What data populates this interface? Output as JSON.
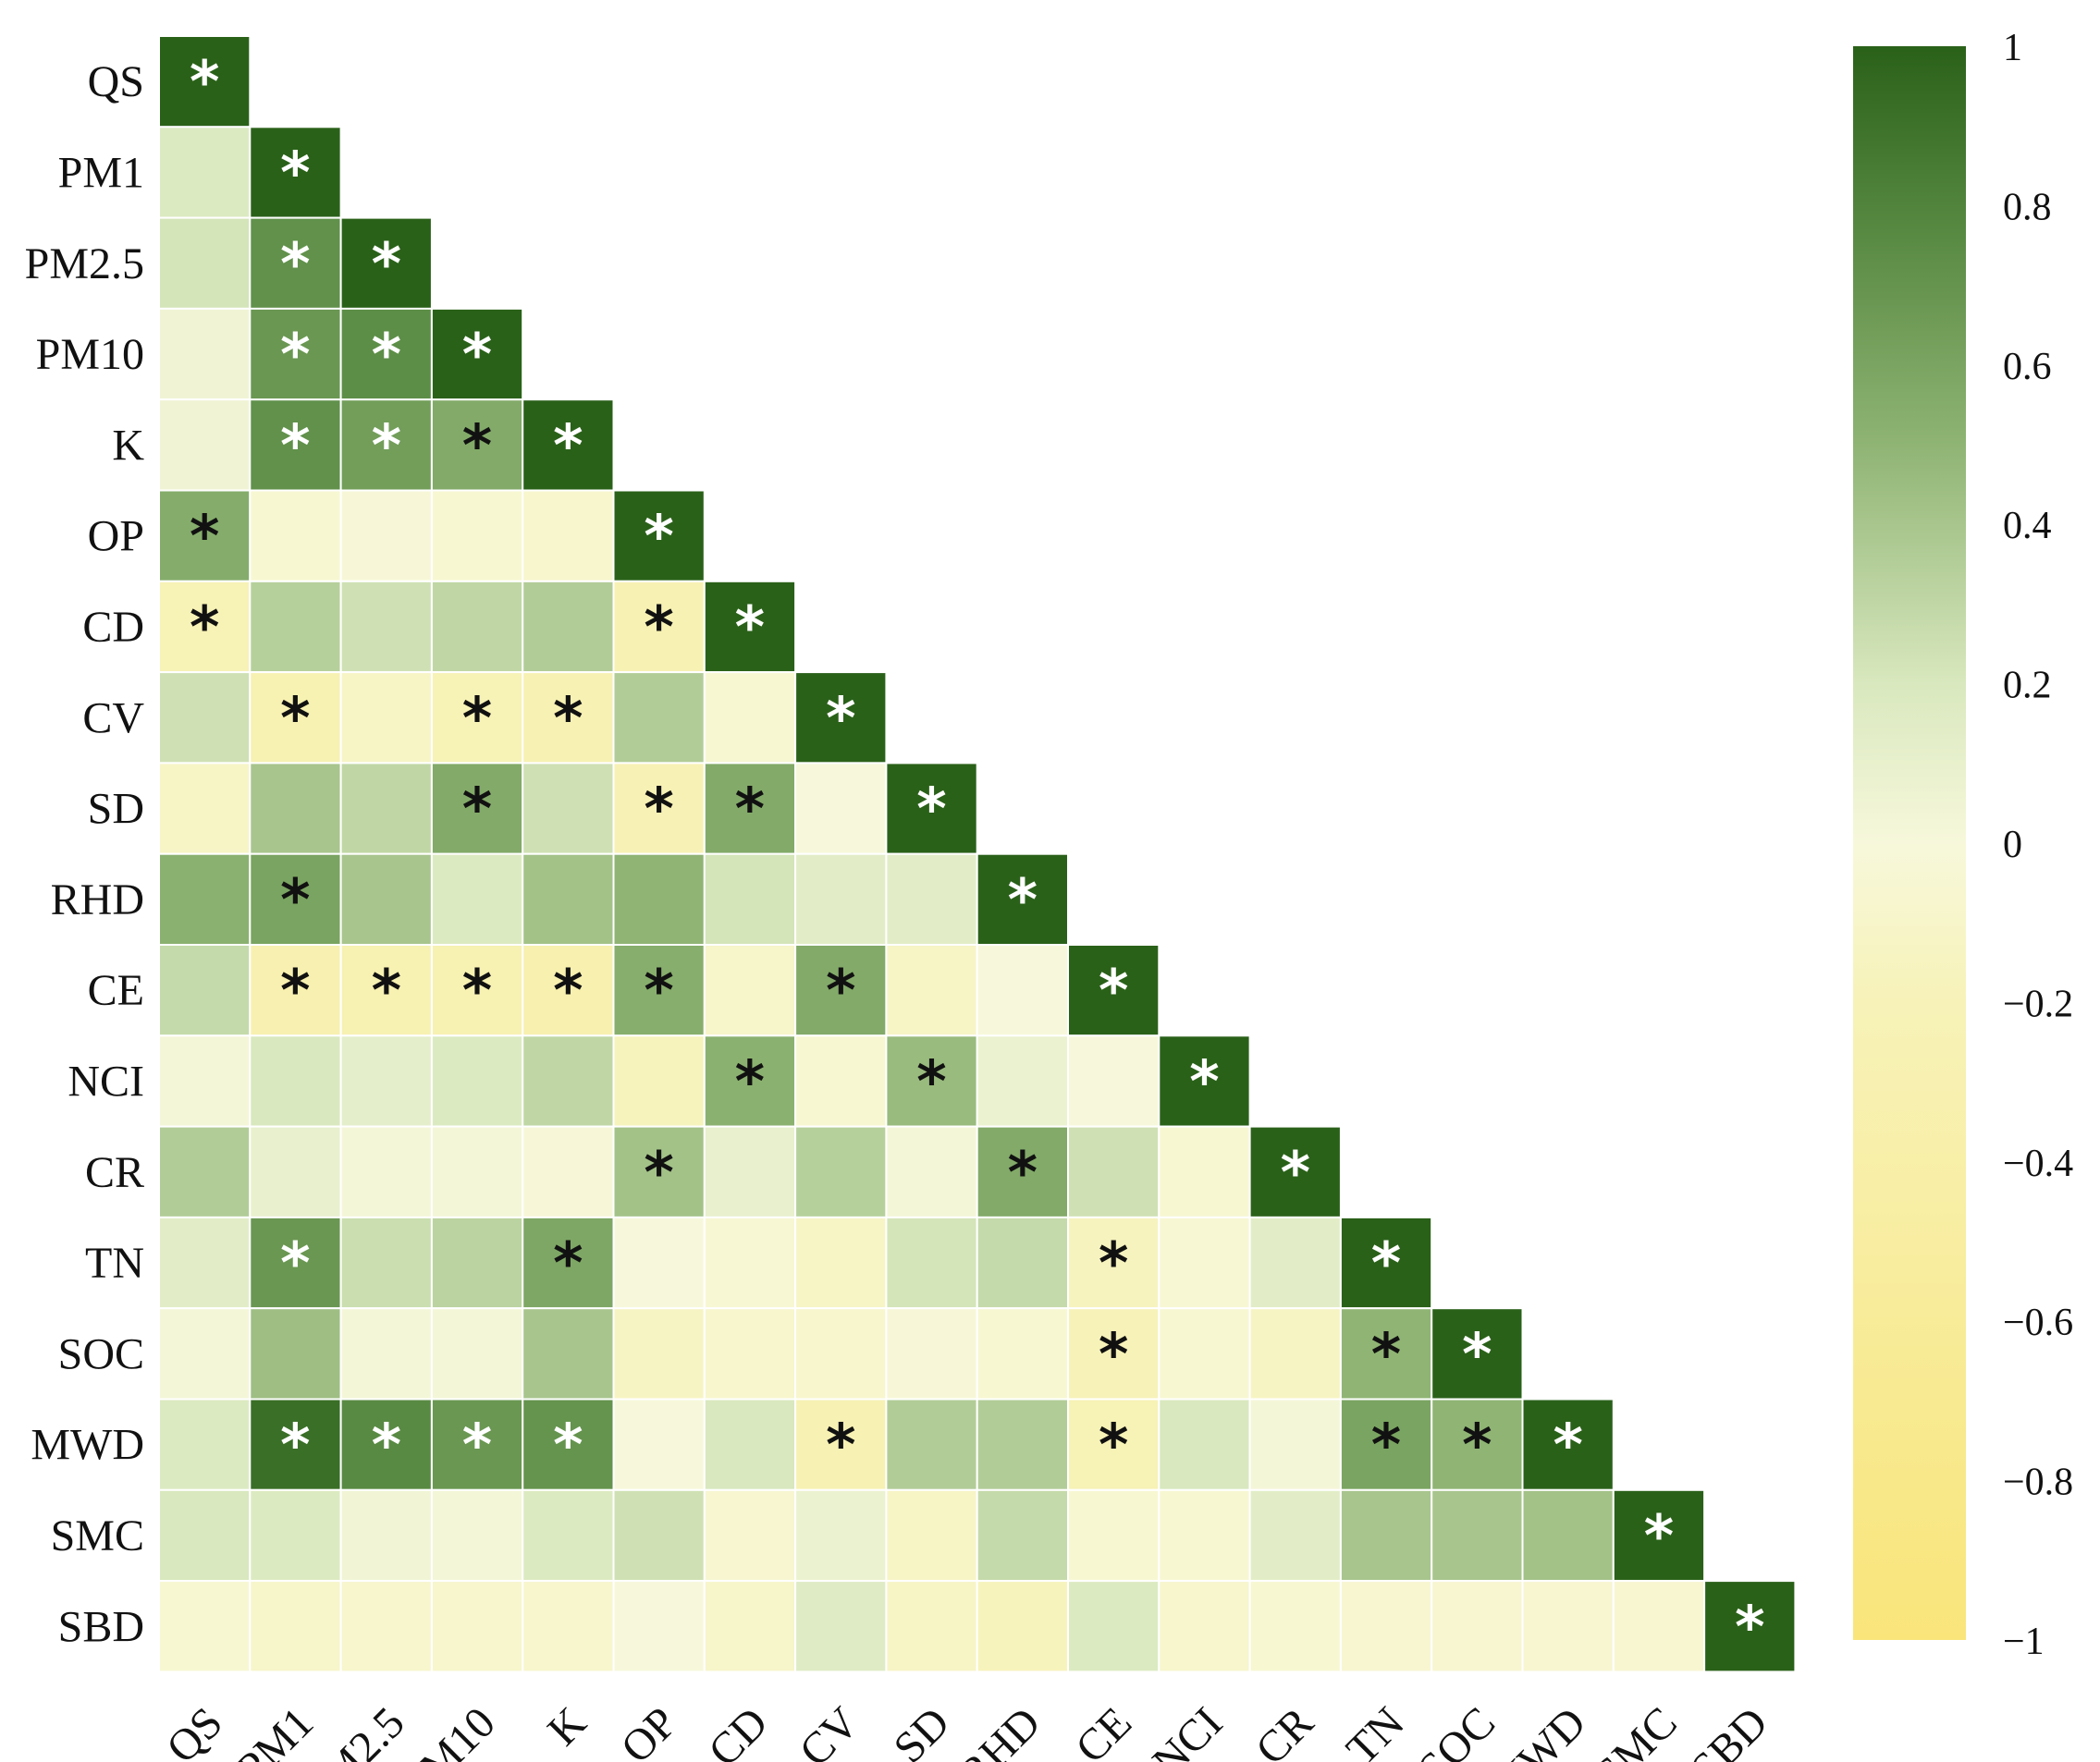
{
  "chart_data": {
    "type": "heatmap",
    "layout": "lower-triangular correlation matrix",
    "variables": [
      "QS",
      "PM1",
      "PM2.5",
      "PM10",
      "K",
      "OP",
      "CD",
      "CV",
      "SD",
      "RHD",
      "CE",
      "NCI",
      "CR",
      "TN",
      "SOC",
      "MWD",
      "SMC",
      "SBD"
    ],
    "matrix": [
      [
        1.0
      ],
      [
        0.18,
        1.0
      ],
      [
        0.22,
        0.72,
        1.0
      ],
      [
        0.05,
        0.68,
        0.74,
        1.0
      ],
      [
        0.05,
        0.72,
        0.64,
        0.56,
        1.0
      ],
      [
        0.55,
        -0.05,
        -0.02,
        -0.05,
        -0.08,
        1.0
      ],
      [
        -0.22,
        0.34,
        0.24,
        0.3,
        0.36,
        -0.26,
        1.0
      ],
      [
        0.24,
        -0.28,
        -0.12,
        -0.22,
        -0.26,
        0.36,
        -0.05,
        1.0
      ],
      [
        -0.12,
        0.4,
        0.3,
        0.56,
        0.24,
        -0.24,
        0.56,
        0.0,
        1.0
      ],
      [
        0.52,
        0.6,
        0.4,
        0.18,
        0.42,
        0.5,
        0.22,
        0.14,
        0.14,
        1.0
      ],
      [
        0.28,
        -0.3,
        -0.28,
        -0.28,
        -0.32,
        0.54,
        -0.1,
        0.56,
        -0.12,
        0.0,
        1.0
      ],
      [
        0.02,
        0.2,
        0.12,
        0.18,
        0.3,
        -0.18,
        0.52,
        -0.05,
        0.46,
        0.08,
        0.0,
        1.0
      ],
      [
        0.36,
        0.1,
        0.02,
        0.02,
        -0.02,
        0.42,
        0.1,
        0.34,
        0.02,
        0.56,
        0.24,
        -0.05,
        1.0
      ],
      [
        0.14,
        0.68,
        0.26,
        0.32,
        0.58,
        0.0,
        -0.04,
        -0.12,
        0.22,
        0.28,
        -0.16,
        -0.04,
        0.14,
        1.0
      ],
      [
        0.02,
        0.44,
        0.02,
        0.02,
        0.4,
        -0.14,
        -0.08,
        -0.08,
        -0.02,
        -0.05,
        -0.2,
        -0.05,
        -0.14,
        0.5,
        1.0
      ],
      [
        0.18,
        0.92,
        0.76,
        0.68,
        0.7,
        0.0,
        0.2,
        -0.26,
        0.36,
        0.36,
        -0.22,
        0.2,
        0.02,
        0.6,
        0.5,
        1.0
      ],
      [
        0.2,
        0.18,
        0.04,
        0.02,
        0.18,
        0.24,
        -0.06,
        0.08,
        -0.12,
        0.28,
        -0.05,
        -0.05,
        0.14,
        0.4,
        0.4,
        0.42,
        1.0
      ],
      [
        -0.05,
        -0.1,
        -0.08,
        -0.08,
        -0.08,
        0.0,
        -0.1,
        0.16,
        -0.12,
        -0.18,
        0.18,
        -0.08,
        -0.05,
        -0.06,
        -0.06,
        -0.06,
        -0.06,
        1.0
      ]
    ],
    "significance_marker": "*",
    "significant_cells": [
      [
        0,
        0
      ],
      [
        1,
        1
      ],
      [
        2,
        1
      ],
      [
        2,
        2
      ],
      [
        3,
        1
      ],
      [
        3,
        2
      ],
      [
        3,
        3
      ],
      [
        4,
        1
      ],
      [
        4,
        2
      ],
      [
        4,
        3
      ],
      [
        4,
        4
      ],
      [
        5,
        0
      ],
      [
        5,
        5
      ],
      [
        6,
        0
      ],
      [
        6,
        5
      ],
      [
        6,
        6
      ],
      [
        7,
        1
      ],
      [
        7,
        3
      ],
      [
        7,
        4
      ],
      [
        7,
        7
      ],
      [
        8,
        3
      ],
      [
        8,
        5
      ],
      [
        8,
        6
      ],
      [
        8,
        8
      ],
      [
        9,
        1
      ],
      [
        9,
        9
      ],
      [
        10,
        1
      ],
      [
        10,
        2
      ],
      [
        10,
        3
      ],
      [
        10,
        4
      ],
      [
        10,
        5
      ],
      [
        10,
        7
      ],
      [
        10,
        10
      ],
      [
        11,
        6
      ],
      [
        11,
        8
      ],
      [
        11,
        11
      ],
      [
        12,
        5
      ],
      [
        12,
        9
      ],
      [
        12,
        12
      ],
      [
        13,
        1
      ],
      [
        13,
        4
      ],
      [
        13,
        10
      ],
      [
        13,
        13
      ],
      [
        14,
        10
      ],
      [
        14,
        13
      ],
      [
        14,
        14
      ],
      [
        15,
        1
      ],
      [
        15,
        2
      ],
      [
        15,
        3
      ],
      [
        15,
        4
      ],
      [
        15,
        7
      ],
      [
        15,
        10
      ],
      [
        15,
        13
      ],
      [
        15,
        14
      ],
      [
        15,
        15
      ],
      [
        16,
        16
      ],
      [
        17,
        17
      ]
    ],
    "colorbar": {
      "range": [
        -1,
        1
      ],
      "ticks": [
        "1",
        "0.8",
        "0.6",
        "0.4",
        "0.2",
        "0",
        "−0.2",
        "−0.4",
        "−0.6",
        "−0.8",
        "−1"
      ],
      "low_color": "#f9e57a",
      "mid_color": "#f7f8db",
      "high_color": "#2a6119"
    },
    "title": "",
    "xlabel": "",
    "ylabel": ""
  }
}
